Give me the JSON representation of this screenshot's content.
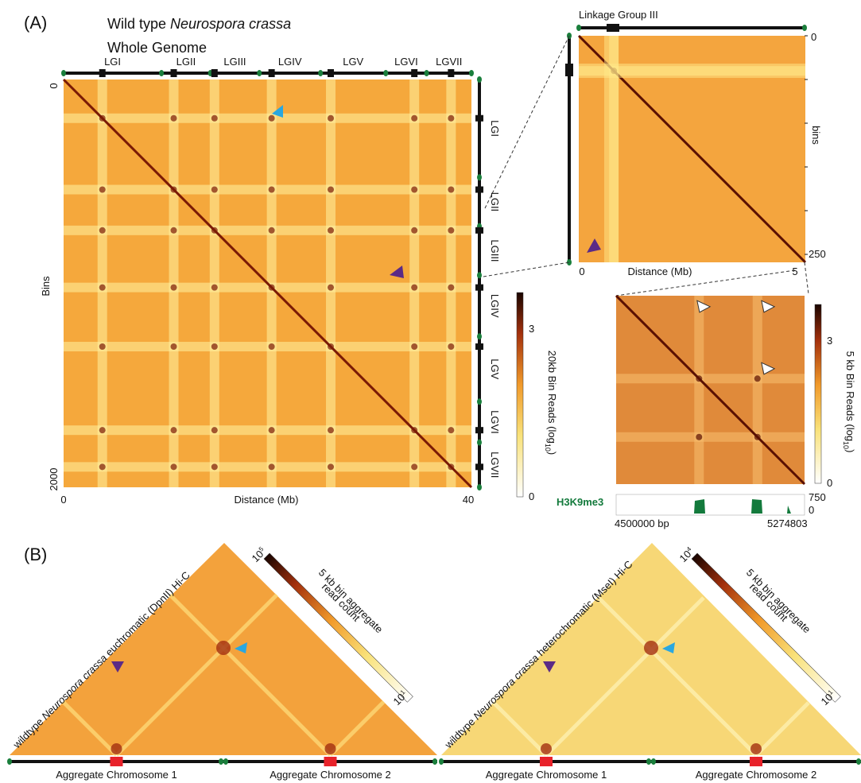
{
  "panel_a": {
    "label": "(A)",
    "title_prefix": "Wild type ",
    "title_italic": "Neurospora crassa",
    "whole_genome": {
      "title": "Whole Genome",
      "chromosomes": [
        "LGI",
        "LGII",
        "LGIII",
        "LGIV",
        "LGV",
        "LGVI",
        "LGVII"
      ],
      "y_label": "Bins",
      "y_ticks": [
        0,
        2000
      ],
      "x_label": "Distance (Mb)",
      "x_ticks": [
        0,
        40
      ],
      "colorbar": {
        "ticks": [
          3,
          0
        ],
        "label": "20kb Bin Reads (log",
        "label_sub": "10",
        "label_end": ")"
      }
    },
    "linkage_group": {
      "title": "Linkage Group III",
      "y_ticks": [
        0,
        250
      ],
      "y_label": "bins",
      "x_label": "Distance (Mb)",
      "x_ticks": [
        0,
        5
      ]
    },
    "zoom": {
      "colorbar": {
        "ticks": [
          3,
          0
        ],
        "label": "5 kb Bin Reads (log",
        "label_sub": "10",
        "label_end": ")"
      },
      "track": {
        "label": "H3K9me3",
        "ticks": [
          750,
          0
        ]
      },
      "x_start": "4500000 bp",
      "x_end": "5274803"
    }
  },
  "panel_b": {
    "label": "(B)",
    "maps": [
      {
        "title_prefix": "wildtype ",
        "title_italic": "Neurospora crassa",
        "title_suffix": " euchromatic (DpnII) Hi-C",
        "colorbar_max": {
          "base": "10",
          "exp": "5"
        },
        "colorbar_min": {
          "base": "10",
          "exp": "1"
        },
        "colorbar_label": [
          "5 kb bin aggregate",
          "read count"
        ],
        "chromosomes": [
          "Aggregate Chromosome 1",
          "Aggregate Chromosome 2"
        ]
      },
      {
        "title_prefix": "wildtype ",
        "title_italic": "Neurospora crassa",
        "title_suffix": " heterochromatic (MseI) Hi-C",
        "colorbar_max": {
          "base": "10",
          "exp": "4"
        },
        "colorbar_min": {
          "base": "10",
          "exp": "1"
        },
        "colorbar_label": [
          "5 kb bin aggregate",
          "read count"
        ],
        "chromosomes": [
          "Aggregate Chromosome 1",
          "Aggregate Chromosome 2"
        ]
      }
    ]
  }
}
